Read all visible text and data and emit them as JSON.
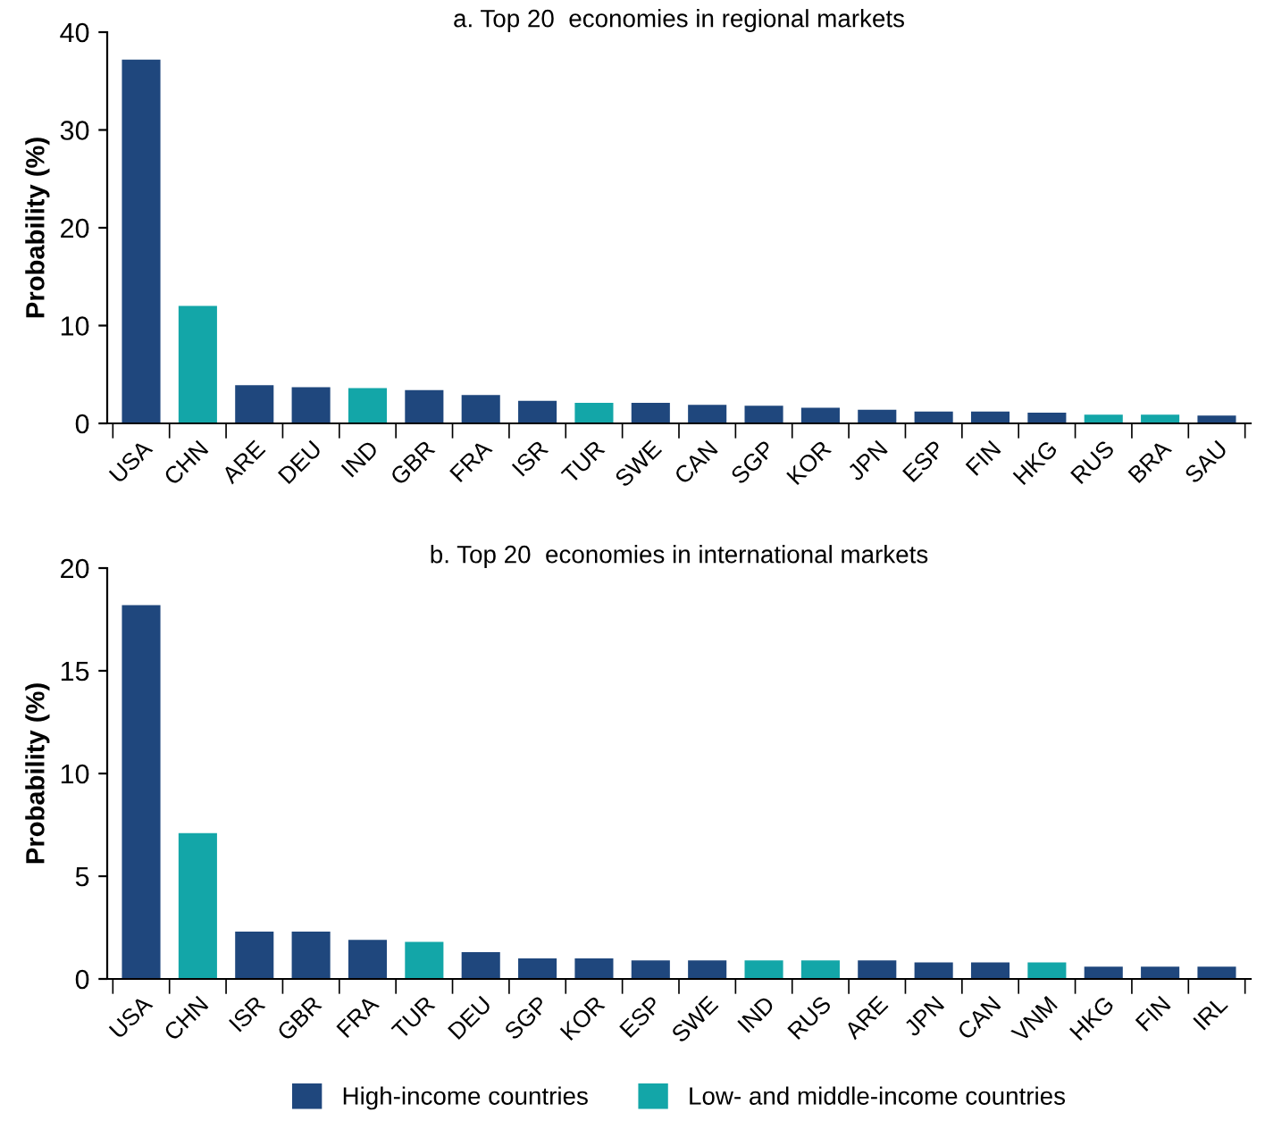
{
  "chart_data": [
    {
      "type": "bar",
      "title": "a. Top 20  economies in regional markets",
      "ylabel": "Probability (%)",
      "categories": [
        "USA",
        "CHN",
        "ARE",
        "DEU",
        "IND",
        "GBR",
        "FRA",
        "ISR",
        "TUR",
        "SWE",
        "CAN",
        "SGP",
        "KOR",
        "JPN",
        "ESP",
        "FIN",
        "HKG",
        "RUS",
        "BRA",
        "SAU"
      ],
      "series": [
        {
          "color": "#1f477d",
          "values": [
            37.2,
            null,
            3.9,
            3.7,
            null,
            3.4,
            2.9,
            2.3,
            null,
            2.1,
            1.9,
            1.8,
            1.6,
            1.4,
            1.2,
            1.2,
            1.1,
            null,
            null,
            0.8
          ]
        },
        {
          "color": "#13a6a8",
          "values": [
            null,
            12.0,
            null,
            null,
            3.6,
            null,
            null,
            null,
            2.1,
            null,
            null,
            null,
            null,
            null,
            null,
            null,
            null,
            0.9,
            0.9,
            null
          ]
        }
      ],
      "ylim": [
        0,
        40
      ],
      "yticks": [
        0,
        10,
        20,
        30,
        40
      ],
      "grid": false
    },
    {
      "type": "bar",
      "title": "b. Top 20  economies in international markets",
      "ylabel": "Probability (%)",
      "categories": [
        "USA",
        "CHN",
        "ISR",
        "GBR",
        "FRA",
        "TUR",
        "DEU",
        "SGP",
        "KOR",
        "ESP",
        "SWE",
        "IND",
        "RUS",
        "ARE",
        "JPN",
        "CAN",
        "VNM",
        "HKG",
        "FIN",
        "IRL"
      ],
      "series": [
        {
          "name": "High-income countries",
          "color": "#1f477d",
          "values": [
            18.2,
            null,
            2.3,
            2.3,
            1.9,
            null,
            1.3,
            1.0,
            1.0,
            0.9,
            0.9,
            null,
            null,
            0.9,
            0.8,
            0.8,
            null,
            0.6,
            0.6,
            0.6
          ]
        },
        {
          "name": "Low- and middle-income countries",
          "color": "#13a6a8",
          "values": [
            null,
            7.1,
            null,
            null,
            null,
            1.8,
            null,
            null,
            null,
            null,
            null,
            0.9,
            0.9,
            null,
            null,
            null,
            0.8,
            null,
            null,
            null
          ]
        }
      ],
      "ylim": [
        0,
        20
      ],
      "yticks": [
        0,
        5,
        10,
        15,
        20
      ],
      "grid": false,
      "legend": "bottom"
    }
  ]
}
